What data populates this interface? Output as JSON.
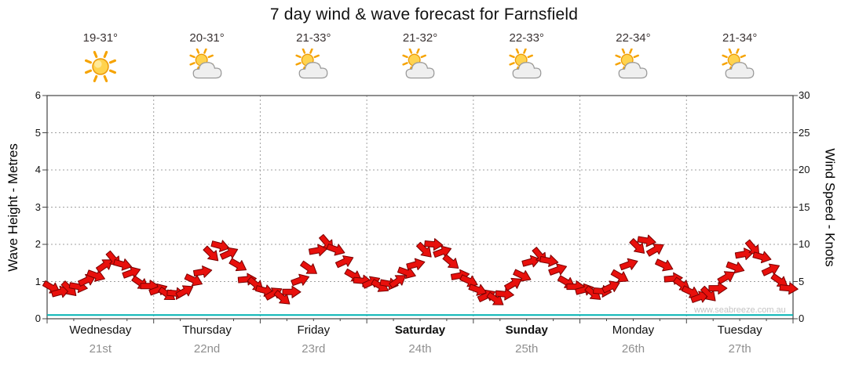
{
  "title": "7 day wind & wave forecast for Farnsfield",
  "watermark": "www.seabreeze.com.au",
  "axes": {
    "left": {
      "label": "Wave Height - Metres",
      "ticks": [
        0,
        1,
        2,
        3,
        4,
        5,
        6
      ],
      "max": 6
    },
    "right": {
      "label": "Wind Speed - Knots",
      "ticks": [
        0,
        5,
        10,
        15,
        20,
        25,
        30
      ],
      "max": 30
    }
  },
  "days": [
    {
      "name": "Wednesday",
      "date": "21st",
      "temp": "19-31°",
      "icon": "sun",
      "bold": false
    },
    {
      "name": "Thursday",
      "date": "22nd",
      "temp": "20-31°",
      "icon": "sun-cloud",
      "bold": false
    },
    {
      "name": "Friday",
      "date": "23rd",
      "temp": "21-33°",
      "icon": "sun-cloud",
      "bold": false
    },
    {
      "name": "Saturday",
      "date": "24th",
      "temp": "21-32°",
      "icon": "sun-cloud",
      "bold": true
    },
    {
      "name": "Sunday",
      "date": "25th",
      "temp": "22-33°",
      "icon": "sun-cloud",
      "bold": true
    },
    {
      "name": "Monday",
      "date": "26th",
      "temp": "22-34°",
      "icon": "sun-cloud",
      "bold": false
    },
    {
      "name": "Tuesday",
      "date": "27th",
      "temp": "21-34°",
      "icon": "sun-cloud",
      "bold": false
    }
  ],
  "chart_data": {
    "type": "wind-barb-series",
    "x_unit": "2-hour steps across 7 days (12 samples per day)",
    "wind_knots": [
      4.2,
      3.6,
      4.0,
      4.3,
      5.2,
      5.8,
      7.2,
      8.0,
      7.3,
      6.2,
      4.8,
      4.4,
      3.9,
      3.3,
      3.4,
      3.7,
      5.2,
      6.3,
      8.7,
      9.8,
      8.8,
      7.2,
      5.3,
      4.6,
      3.8,
      3.4,
      2.8,
      3.6,
      5.2,
      6.8,
      9.2,
      10.2,
      9.3,
      7.7,
      5.8,
      5.1,
      4.9,
      4.4,
      4.7,
      5.1,
      6.2,
      7.3,
      9.2,
      10.0,
      9.0,
      7.6,
      5.8,
      5.1,
      3.9,
      3.1,
      2.6,
      3.3,
      4.7,
      5.8,
      7.7,
      8.5,
      7.8,
      6.6,
      4.9,
      4.3,
      3.9,
      3.4,
      3.7,
      4.3,
      5.7,
      7.3,
      9.7,
      10.5,
      9.3,
      7.2,
      5.4,
      4.6,
      3.6,
      2.9,
      3.3,
      4.1,
      5.6,
      6.9,
      8.7,
      9.5,
      8.3,
      6.6,
      5.1,
      4.1
    ],
    "arrow_dir_deg": [
      30,
      -15,
      45,
      10,
      -25,
      20,
      -35,
      50,
      15,
      -20,
      35,
      0,
      -20,
      35,
      5,
      -30,
      25,
      -10,
      45,
      15,
      -25,
      30,
      -5,
      40,
      15,
      -30,
      40,
      0,
      -20,
      35,
      -10,
      50,
      20,
      -25,
      30,
      5,
      -25,
      30,
      10,
      -35,
      20,
      -15,
      45,
      5,
      -20,
      40,
      -10,
      25,
      20,
      -25,
      35,
      5,
      -30,
      25,
      -15,
      50,
      10,
      -20,
      30,
      0,
      -15,
      40,
      5,
      -25,
      30,
      -20,
      45,
      10,
      -30,
      25,
      -5,
      35,
      25,
      -20,
      45,
      0,
      -30,
      20,
      -10,
      50,
      15,
      -25,
      35,
      5
    ],
    "wave_height_m_constant": 0.1,
    "ylim_left": [
      0,
      6
    ],
    "ylim_right": [
      0,
      30
    ],
    "grid": true,
    "colors": {
      "arrow": "#e8100c",
      "arrow_outline": "#7a0000",
      "wave_line": "#00b2b2",
      "grid": "#a0a0a0",
      "axis": "#444444"
    }
  }
}
